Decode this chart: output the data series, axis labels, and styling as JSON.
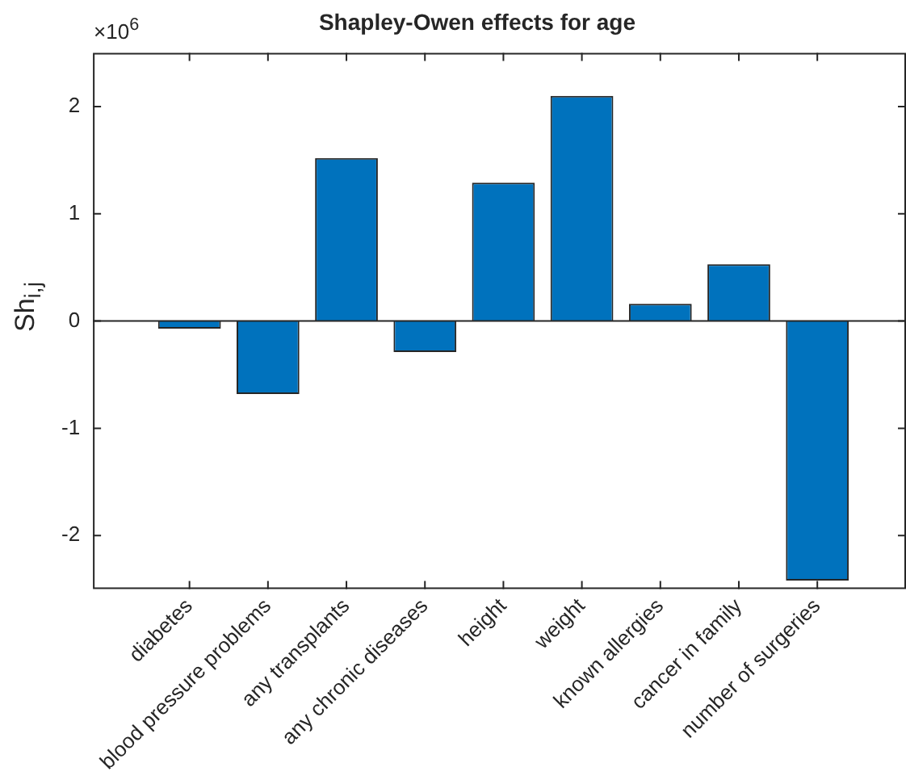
{
  "chart_data": {
    "type": "bar",
    "title": "Shapley-Owen effects for age",
    "ylabel": "Sh$_{i,j}$",
    "annotations": [
      "×10$^{6}$"
    ],
    "categories": [
      "diabetes",
      "blood pressure problems",
      "any transplants",
      "any chronic diseases",
      "height",
      "weight",
      "known allergies",
      "cancer in family",
      "number of surgeries"
    ],
    "values": [
      -0.07,
      -0.68,
      1.52,
      -0.29,
      1.29,
      2.1,
      0.16,
      0.53,
      -2.42
    ],
    "color": "#0072bd",
    "ylim": [
      -2.5,
      2.5
    ],
    "yticks": [
      -2,
      -1,
      0,
      1,
      2
    ],
    "ref_lines": [
      {
        "axis": "y",
        "value": 0,
        "color": "#262626"
      }
    ],
    "legend": false
  }
}
